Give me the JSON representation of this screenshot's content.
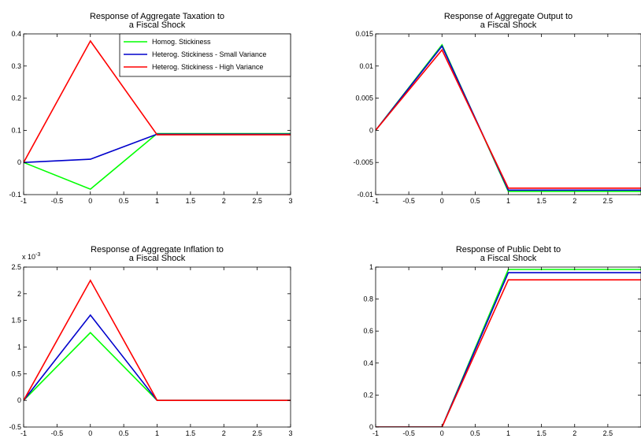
{
  "chart_data": [
    {
      "type": "line",
      "title": [
        "Response of Aggregate Taxation to",
        "a Fiscal Shock"
      ],
      "xlabel": "",
      "ylabel": "",
      "xlim": [
        -1,
        3
      ],
      "ylim": [
        -0.1,
        0.4
      ],
      "xticks": [
        -1,
        -0.5,
        0,
        0.5,
        1,
        1.5,
        2,
        2.5,
        3
      ],
      "yticks": [
        -0.1,
        0,
        0.1,
        0.2,
        0.3,
        0.4
      ],
      "xticklabels": [
        "-1",
        "-0.5",
        "0",
        "0.5",
        "1",
        "1.5",
        "2",
        "2.5",
        "3"
      ],
      "yticklabels": [
        "-0.1",
        "0",
        "0.1",
        "0.2",
        "0.3",
        "0.4"
      ],
      "exponent_label": "",
      "legend": "top-right",
      "grid": false,
      "x": [
        -1,
        0,
        1,
        2,
        3
      ],
      "series": [
        {
          "name": "Homog. Stickiness",
          "color": "#00ff00",
          "values": [
            0,
            -0.083,
            0.09,
            0.09,
            0.09
          ]
        },
        {
          "name": "Heterog. Stickiness - Small Variance",
          "color": "#0000cc",
          "values": [
            0,
            0.01,
            0.088,
            0.088,
            0.088
          ]
        },
        {
          "name": "Heterog. Stickiness - High Variance",
          "color": "#ff0000",
          "values": [
            0,
            0.378,
            0.086,
            0.086,
            0.086
          ]
        }
      ]
    },
    {
      "type": "line",
      "title": [
        "Response of Aggregate Output to",
        "a Fiscal Shock"
      ],
      "xlabel": "",
      "ylabel": "",
      "xlim": [
        -1,
        3
      ],
      "ylim": [
        -0.01,
        0.015
      ],
      "xticks": [
        -1,
        -0.5,
        0,
        0.5,
        1,
        1.5,
        2,
        2.5
      ],
      "yticks": [
        -0.01,
        -0.005,
        0,
        0.005,
        0.01,
        0.015
      ],
      "xticklabels": [
        "-1",
        "-0.5",
        "0",
        "0.5",
        "1",
        "1.5",
        "2",
        "2.5"
      ],
      "yticklabels": [
        "-0.01",
        "-0.005",
        "0",
        "0.005",
        "0.01",
        "0.015"
      ],
      "exponent_label": "",
      "legend": "none",
      "grid": false,
      "x": [
        -1,
        0,
        1,
        2,
        3
      ],
      "series": [
        {
          "color": "#00ff00",
          "values": [
            0,
            0.0133,
            -0.0095,
            -0.0095,
            -0.0095
          ]
        },
        {
          "color": "#0000cc",
          "values": [
            0,
            0.0131,
            -0.0093,
            -0.0093,
            -0.0093
          ]
        },
        {
          "color": "#ff0000",
          "values": [
            0,
            0.0125,
            -0.009,
            -0.009,
            -0.009
          ]
        }
      ]
    },
    {
      "type": "line",
      "title": [
        "Response of Aggregate Inflation to",
        "a Fiscal Shock"
      ],
      "xlabel": "",
      "ylabel": "",
      "xlim": [
        -1,
        3
      ],
      "ylim": [
        -0.5,
        2.5
      ],
      "xticks": [
        -1,
        -0.5,
        0,
        0.5,
        1,
        1.5,
        2,
        2.5,
        3
      ],
      "yticks": [
        -0.5,
        0,
        0.5,
        1,
        1.5,
        2,
        2.5
      ],
      "xticklabels": [
        "-1",
        "-0.5",
        "0",
        "0.5",
        "1",
        "1.5",
        "2",
        "2.5",
        "3"
      ],
      "yticklabels": [
        "-0.5",
        "0",
        "0.5",
        "1",
        "1.5",
        "2",
        "2.5"
      ],
      "exponent_label": "x 10",
      "exponent_power": "-3",
      "legend": "none",
      "grid": false,
      "x": [
        -1,
        0,
        1,
        2,
        3
      ],
      "series": [
        {
          "color": "#00ff00",
          "values": [
            0,
            1.27,
            0,
            0,
            0
          ]
        },
        {
          "color": "#0000cc",
          "values": [
            0,
            1.6,
            0,
            0,
            0
          ]
        },
        {
          "color": "#ff0000",
          "values": [
            0,
            2.25,
            0,
            0,
            0
          ]
        }
      ]
    },
    {
      "type": "line",
      "title": [
        "Response of Public Debt to",
        "a Fiscal Shock"
      ],
      "xlabel": "",
      "ylabel": "",
      "xlim": [
        -1,
        3
      ],
      "ylim": [
        0,
        1
      ],
      "xticks": [
        -1,
        -0.5,
        0,
        0.5,
        1,
        1.5,
        2,
        2.5
      ],
      "yticks": [
        0,
        0.2,
        0.4,
        0.6,
        0.8,
        1
      ],
      "xticklabels": [
        "-1",
        "-0.5",
        "0",
        "0.5",
        "1",
        "1.5",
        "2",
        "2.5"
      ],
      "yticklabels": [
        "0",
        "0.2",
        "0.4",
        "0.6",
        "0.8",
        "1"
      ],
      "exponent_label": "",
      "legend": "none",
      "grid": false,
      "x": [
        -1,
        0,
        1,
        2,
        3
      ],
      "series": [
        {
          "color": "#00ff00",
          "values": [
            0,
            0,
            0.985,
            0.985,
            0.985
          ]
        },
        {
          "color": "#0000cc",
          "values": [
            0,
            0,
            0.965,
            0.965,
            0.965
          ]
        },
        {
          "color": "#ff0000",
          "values": [
            0,
            0,
            0.92,
            0.92,
            0.92
          ]
        }
      ]
    }
  ]
}
